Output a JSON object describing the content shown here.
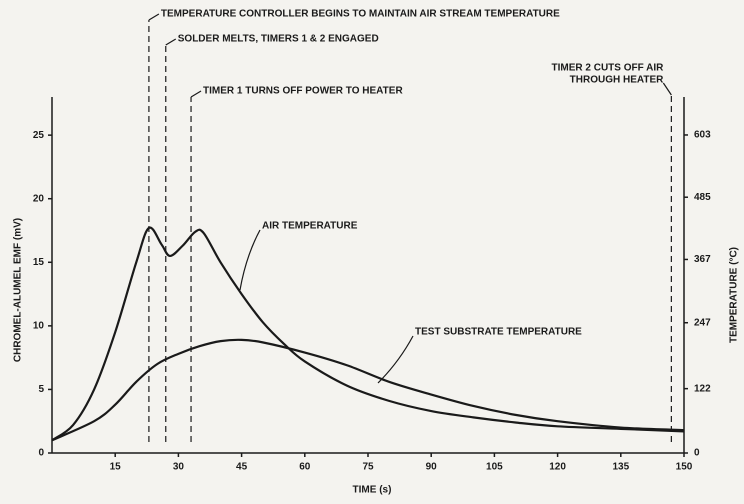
{
  "chart_data": {
    "type": "line",
    "xlabel": "TIME (s)",
    "ylabel": "CHROMEL-ALUMEL EMF (mV)",
    "y2label": "TEMPERATURE (°C)",
    "xlim": [
      0,
      150
    ],
    "xticks": [
      15,
      30,
      45,
      60,
      75,
      90,
      105,
      120,
      135,
      150
    ],
    "ylim": [
      0,
      28
    ],
    "yticks": [
      0,
      5,
      10,
      15,
      20,
      25
    ],
    "y2lim": [
      0,
      675
    ],
    "y2ticks": [
      0,
      122,
      247,
      367,
      485,
      603
    ],
    "series": [
      {
        "name": "AIR TEMPERATURE",
        "color": "#1a1a1a",
        "x": [
          0,
          5,
          10,
          15,
          20,
          23,
          26,
          28,
          31,
          34,
          36,
          40,
          45,
          50,
          55,
          60,
          70,
          80,
          90,
          100,
          110,
          120,
          135,
          150
        ],
        "values": [
          1,
          2.2,
          5,
          9.5,
          15,
          17.7,
          16.4,
          15.5,
          16.3,
          17.4,
          17.3,
          15,
          12.5,
          10.3,
          8.6,
          7.2,
          5.3,
          4.1,
          3.3,
          2.8,
          2.4,
          2.1,
          1.9,
          1.7
        ]
      },
      {
        "name": "TEST SUBSTRATE TEMPERATURE",
        "color": "#1a1a1a",
        "x": [
          0,
          10,
          15,
          20,
          25,
          30,
          35,
          40,
          45,
          50,
          60,
          70,
          80,
          90,
          100,
          110,
          120,
          135,
          150
        ],
        "values": [
          1,
          2.5,
          3.8,
          5.6,
          7.0,
          7.8,
          8.4,
          8.8,
          8.9,
          8.7,
          7.9,
          6.9,
          5.6,
          4.6,
          3.7,
          3.0,
          2.5,
          2.0,
          1.8
        ]
      }
    ],
    "events": [
      {
        "x": 23,
        "label": [
          "TEMPERATURE CONTROLLER BEGINS TO MAINTAIN AIR STREAM TEMPERATURE"
        ]
      },
      {
        "x": 27,
        "label": [
          "SOLDER MELTS, TIMERS 1 & 2 ENGAGED"
        ]
      },
      {
        "x": 33,
        "label": [
          "TIMER 1 TURNS OFF POWER TO HEATER"
        ]
      },
      {
        "x": 147,
        "label": [
          "TIMER 2 CUTS OFF AIR",
          "THROUGH HEATER"
        ]
      }
    ]
  }
}
